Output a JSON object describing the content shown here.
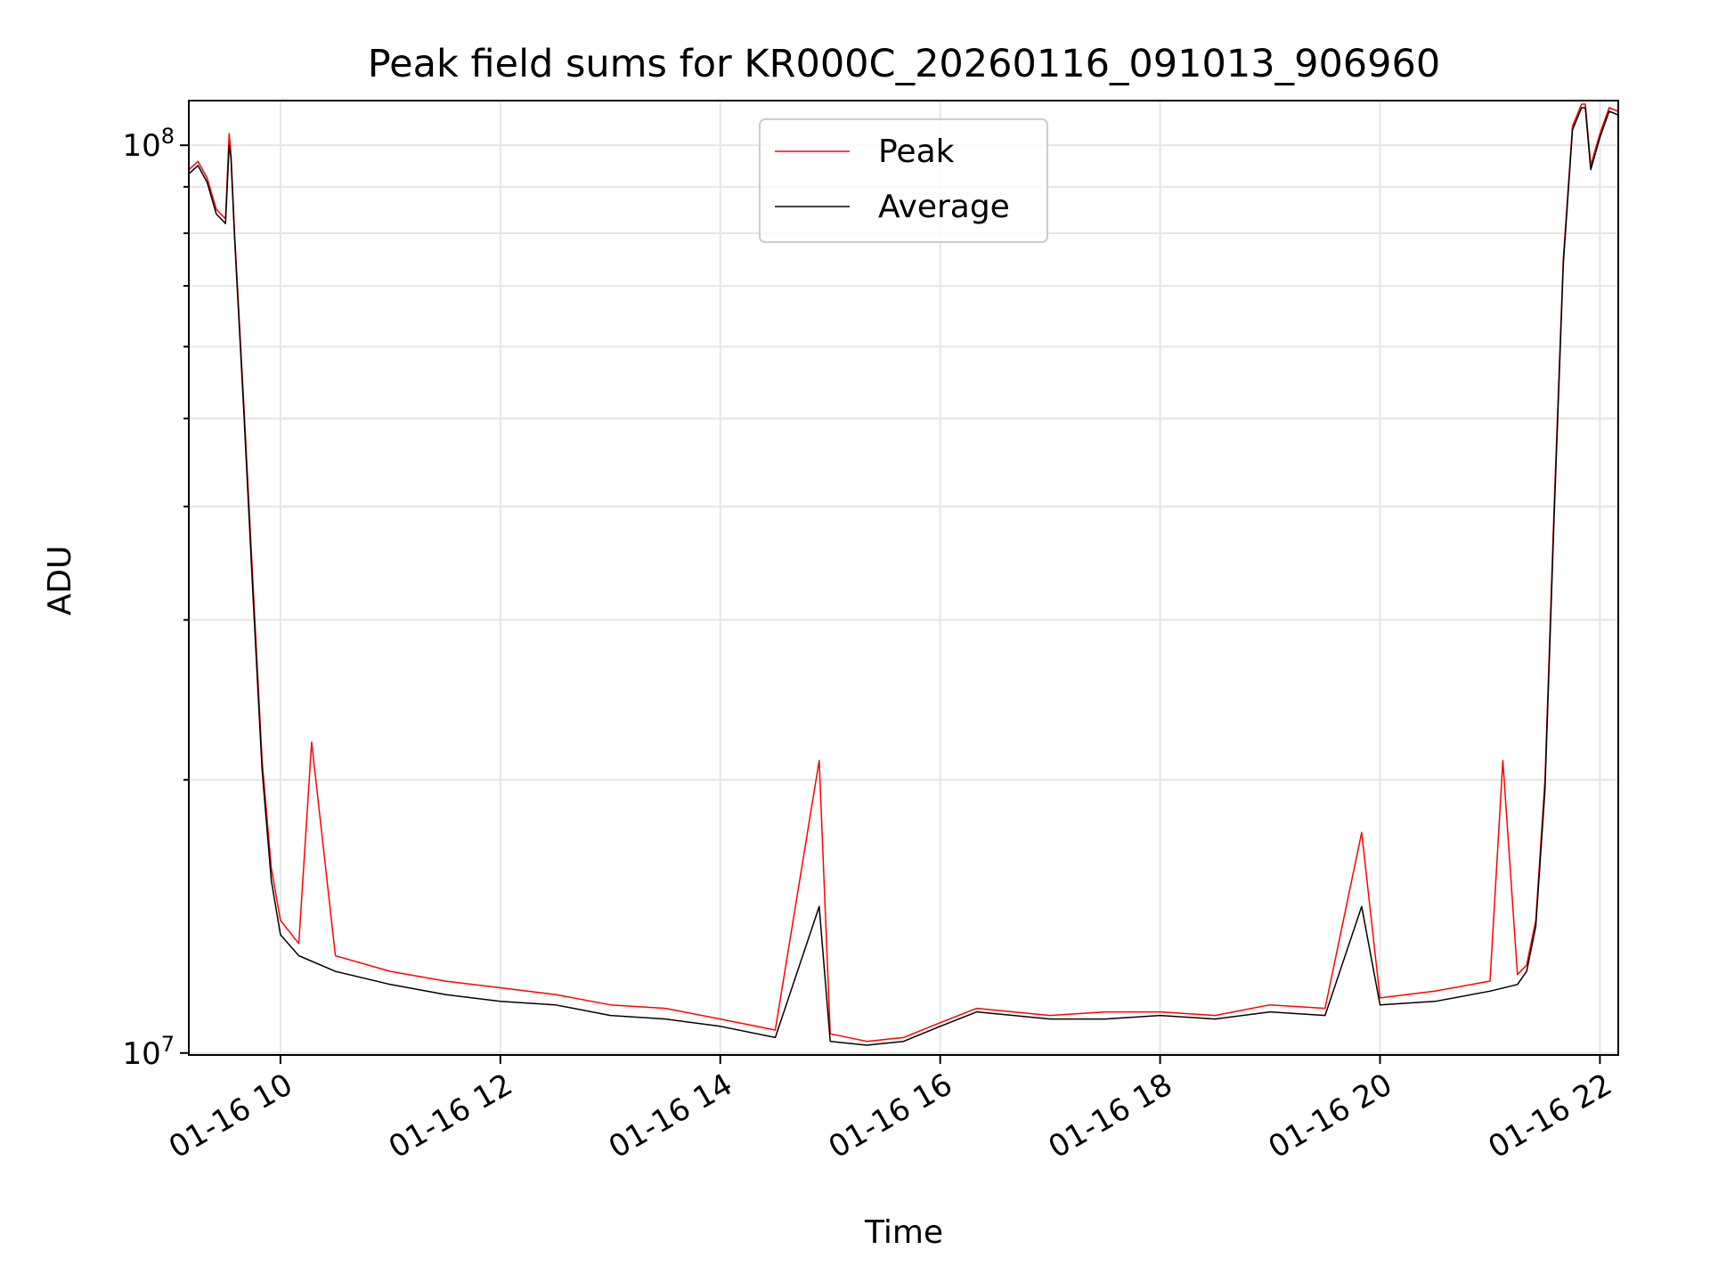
{
  "chart_data": {
    "type": "line",
    "title": "Peak field sums for KR000C_20260116_091013_906960",
    "xlabel": "Time",
    "ylabel": "ADU",
    "y_scale": "log",
    "ylim": [
      9950000,
      112000000
    ],
    "xlim": [
      "2026-01-16 09:10",
      "2026-01-16 22:10"
    ],
    "x_ticks": [
      {
        "value": "2026-01-16 10:00",
        "label": "01-16 10"
      },
      {
        "value": "2026-01-16 12:00",
        "label": "01-16 12"
      },
      {
        "value": "2026-01-16 14:00",
        "label": "01-16 14"
      },
      {
        "value": "2026-01-16 16:00",
        "label": "01-16 16"
      },
      {
        "value": "2026-01-16 18:00",
        "label": "01-16 18"
      },
      {
        "value": "2026-01-16 20:00",
        "label": "01-16 20"
      },
      {
        "value": "2026-01-16 22:00",
        "label": "01-16 22"
      }
    ],
    "y_ticks": [
      {
        "value": 10000000,
        "base": "10",
        "exp": "7"
      },
      {
        "value": 100000000,
        "base": "10",
        "exp": "8"
      }
    ],
    "grid": true,
    "legend_position": "top-center",
    "series": [
      {
        "name": "Peak",
        "color": "#ff0000",
        "x": [
          "2026-01-16 09:10",
          "2026-01-16 09:15",
          "2026-01-16 09:20",
          "2026-01-16 09:25",
          "2026-01-16 09:30",
          "2026-01-16 09:32",
          "2026-01-16 09:33",
          "2026-01-16 09:35",
          "2026-01-16 09:40",
          "2026-01-16 09:45",
          "2026-01-16 09:50",
          "2026-01-16 09:55",
          "2026-01-16 10:00",
          "2026-01-16 10:10",
          "2026-01-16 10:17",
          "2026-01-16 10:30",
          "2026-01-16 11:00",
          "2026-01-16 11:30",
          "2026-01-16 12:00",
          "2026-01-16 12:30",
          "2026-01-16 13:00",
          "2026-01-16 13:30",
          "2026-01-16 14:00",
          "2026-01-16 14:30",
          "2026-01-16 14:54",
          "2026-01-16 15:00",
          "2026-01-16 15:20",
          "2026-01-16 15:40",
          "2026-01-16 16:00",
          "2026-01-16 16:20",
          "2026-01-16 16:40",
          "2026-01-16 17:00",
          "2026-01-16 17:30",
          "2026-01-16 18:00",
          "2026-01-16 18:30",
          "2026-01-16 19:00",
          "2026-01-16 19:30",
          "2026-01-16 19:50",
          "2026-01-16 20:00",
          "2026-01-16 20:30",
          "2026-01-16 21:00",
          "2026-01-16 21:07",
          "2026-01-16 21:15",
          "2026-01-16 21:20",
          "2026-01-16 21:25",
          "2026-01-16 21:30",
          "2026-01-16 21:35",
          "2026-01-16 21:40",
          "2026-01-16 21:45",
          "2026-01-16 21:50",
          "2026-01-16 21:52",
          "2026-01-16 21:55",
          "2026-01-16 22:00",
          "2026-01-16 22:05",
          "2026-01-16 22:10"
        ],
        "y": [
          94000000,
          96000000,
          92000000,
          85000000,
          83000000,
          103000000,
          98000000,
          80000000,
          52000000,
          33000000,
          21000000,
          16000000,
          14000000,
          13200000,
          22000000,
          12800000,
          12300000,
          12000000,
          11800000,
          11600000,
          11300000,
          11200000,
          10900000,
          10600000,
          21000000,
          10500000,
          10300000,
          10400000,
          10800000,
          11200000,
          11100000,
          11000000,
          11100000,
          11100000,
          11000000,
          11300000,
          11200000,
          17500000,
          11500000,
          11700000,
          12000000,
          21000000,
          12200000,
          12500000,
          14000000,
          20000000,
          40000000,
          75000000,
          105000000,
          111000000,
          111000000,
          95000000,
          103000000,
          110000000,
          109000000
        ]
      },
      {
        "name": "Average",
        "color": "#000000",
        "x": [
          "2026-01-16 09:10",
          "2026-01-16 09:15",
          "2026-01-16 09:20",
          "2026-01-16 09:25",
          "2026-01-16 09:30",
          "2026-01-16 09:32",
          "2026-01-16 09:33",
          "2026-01-16 09:35",
          "2026-01-16 09:40",
          "2026-01-16 09:45",
          "2026-01-16 09:50",
          "2026-01-16 09:55",
          "2026-01-16 10:00",
          "2026-01-16 10:10",
          "2026-01-16 10:30",
          "2026-01-16 11:00",
          "2026-01-16 11:30",
          "2026-01-16 12:00",
          "2026-01-16 12:30",
          "2026-01-16 13:00",
          "2026-01-16 13:30",
          "2026-01-16 14:00",
          "2026-01-16 14:30",
          "2026-01-16 14:54",
          "2026-01-16 15:00",
          "2026-01-16 15:20",
          "2026-01-16 15:40",
          "2026-01-16 16:00",
          "2026-01-16 16:20",
          "2026-01-16 16:40",
          "2026-01-16 17:00",
          "2026-01-16 17:30",
          "2026-01-16 18:00",
          "2026-01-16 18:30",
          "2026-01-16 19:00",
          "2026-01-16 19:30",
          "2026-01-16 19:50",
          "2026-01-16 20:00",
          "2026-01-16 20:30",
          "2026-01-16 21:00",
          "2026-01-16 21:15",
          "2026-01-16 21:20",
          "2026-01-16 21:25",
          "2026-01-16 21:30",
          "2026-01-16 21:35",
          "2026-01-16 21:40",
          "2026-01-16 21:45",
          "2026-01-16 21:50",
          "2026-01-16 21:52",
          "2026-01-16 21:55",
          "2026-01-16 22:00",
          "2026-01-16 22:05",
          "2026-01-16 22:10"
        ],
        "y": [
          93000000,
          95000000,
          91000000,
          84000000,
          82000000,
          100000000,
          97000000,
          79000000,
          51000000,
          32000000,
          20500000,
          15500000,
          13500000,
          12800000,
          12300000,
          11900000,
          11600000,
          11400000,
          11300000,
          11000000,
          10900000,
          10700000,
          10400000,
          14500000,
          10300000,
          10200000,
          10300000,
          10700000,
          11100000,
          11000000,
          10900000,
          10900000,
          11000000,
          10900000,
          11100000,
          11000000,
          14500000,
          11300000,
          11400000,
          11700000,
          11900000,
          12300000,
          13800000,
          19500000,
          39000000,
          74000000,
          104000000,
          110000000,
          110000000,
          94000000,
          102000000,
          109000000,
          108000000
        ]
      }
    ]
  }
}
